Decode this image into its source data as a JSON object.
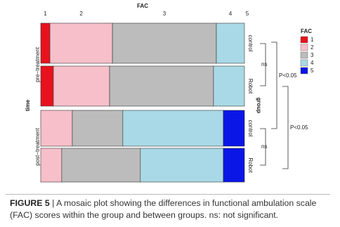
{
  "chart_data": {
    "type": "mosaic",
    "title": "FAC",
    "y_label": "time",
    "group_label": "group",
    "legend_title": "FAC",
    "categories": [
      "1",
      "2",
      "3",
      "4",
      "5"
    ],
    "colors": [
      "#e8121e",
      "#f7bfc9",
      "#bcbcbc",
      "#a9d9e6",
      "#0a16e6"
    ],
    "time_levels": [
      "pre−treatment",
      "post−treatment"
    ],
    "group_levels": [
      "control",
      "Robot"
    ],
    "rows": [
      {
        "values": [
          4.5,
          30.7,
          51.0,
          13.8,
          0
        ]
      },
      {
        "values": [
          6.2,
          27.6,
          51.0,
          15.2,
          0
        ]
      },
      {
        "values": [
          0,
          15.5,
          24.8,
          49.3,
          10.4
        ]
      },
      {
        "values": [
          0,
          10.3,
          38.6,
          40.7,
          10.4
        ]
      }
    ],
    "annotations": [
      "ns",
      "P<0.05",
      "ns",
      "P<0.05"
    ]
  },
  "caption": {
    "label": "FIGURE 5",
    "separator": "|",
    "text": "A mosaic plot showing the differences in functional ambulation scale (FAC) scores within the group and between groups. ns: not significant."
  }
}
